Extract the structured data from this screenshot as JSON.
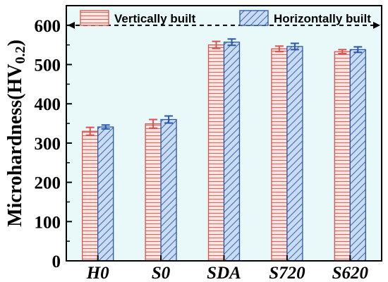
{
  "chart_data": {
    "type": "bar",
    "categories": [
      "H0",
      "S0",
      "SDA",
      "S720",
      "S620"
    ],
    "series": [
      {
        "name": "Vertically built",
        "values": [
          330,
          349,
          550,
          540,
          533
        ],
        "errors": [
          10,
          11,
          9,
          7,
          5
        ],
        "color": "#d9534f",
        "fill": "#fde4df",
        "hatch": "horizontal"
      },
      {
        "name": "Horizontally built",
        "values": [
          341,
          360,
          557,
          546,
          538
        ],
        "errors": [
          5,
          9,
          8,
          8,
          7
        ],
        "color": "#2a57a6",
        "fill": "#c9dcf3",
        "hatch": "diagonal"
      }
    ],
    "ylabel_main": "Microhardness(HV",
    "ylabel_sub": "0.2",
    "ylabel_close": ")",
    "xlabel": "",
    "ylim": [
      0,
      650
    ],
    "yticks": [
      0,
      100,
      200,
      300,
      400,
      500,
      600
    ],
    "reference_line": 600,
    "legend_position": "top",
    "background": "#e9f9f9"
  }
}
